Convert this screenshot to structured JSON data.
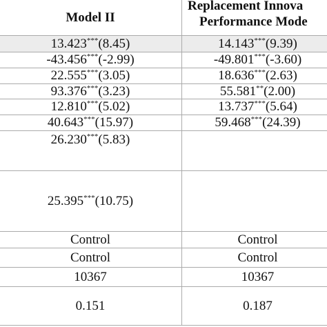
{
  "table": {
    "header": {
      "model_ii": "Model II",
      "replacement_line1": "Replacement Innova",
      "replacement_line2": "Performance Mode"
    },
    "rows": [
      {
        "cells": [
          {
            "coef": "13.423",
            "stars": "***",
            "t": "(8.45)"
          },
          {
            "coef": "14.143",
            "stars": "***",
            "t": "(9.39)"
          }
        ]
      },
      {
        "cells": [
          {
            "coef": "-43.456",
            "stars": "***",
            "t": "(-2.99)"
          },
          {
            "coef": "-49.801",
            "stars": "***",
            "t": "(-3.60)"
          }
        ]
      },
      {
        "cells": [
          {
            "coef": "22.555",
            "stars": "***",
            "t": "(3.05)"
          },
          {
            "coef": "18.636",
            "stars": "***",
            "t": "(2.63)"
          }
        ]
      },
      {
        "cells": [
          {
            "coef": "93.376",
            "stars": "***",
            "t": "(3.23)"
          },
          {
            "coef": "55.581",
            "stars": "**",
            "t": "(2.00)"
          }
        ]
      },
      {
        "cells": [
          {
            "coef": "12.810",
            "stars": "***",
            "t": "(5.02)"
          },
          {
            "coef": "13.737",
            "stars": "***",
            "t": "(5.64)"
          }
        ]
      },
      {
        "cells": [
          {
            "coef": "40.643",
            "stars": "***",
            "t": "(15.97)"
          },
          {
            "coef": "59.468",
            "stars": "***",
            "t": "(24.39)"
          }
        ]
      },
      {
        "cells": [
          {
            "coef": "26.230",
            "stars": "***",
            "t": "(5.83)"
          },
          null
        ]
      },
      {
        "cells": [
          {
            "coef": "25.395",
            "stars": "***",
            "t": "(10.75)"
          },
          null
        ]
      },
      {
        "cells": [
          {
            "text": "Control"
          },
          {
            "text": "Control"
          }
        ]
      },
      {
        "cells": [
          {
            "text": "Control"
          },
          {
            "text": "Control"
          }
        ]
      },
      {
        "cells": [
          {
            "text": "10367"
          },
          {
            "text": "10367"
          }
        ]
      },
      {
        "cells": [
          {
            "text": "0.151"
          },
          {
            "text": "0.187"
          }
        ]
      }
    ]
  }
}
